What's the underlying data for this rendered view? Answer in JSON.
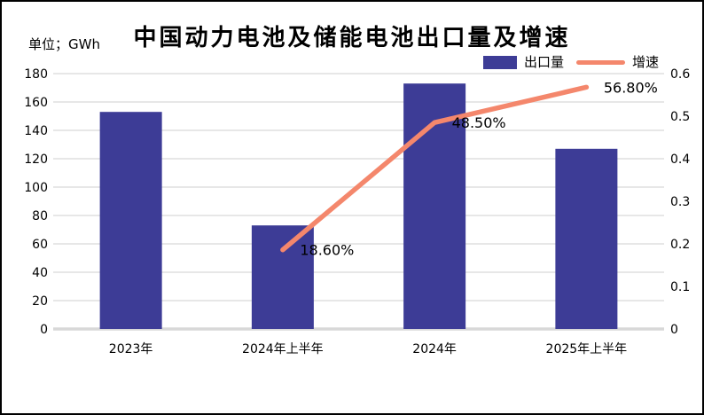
{
  "meta": {
    "title": "中国动力电池及储能电池出口量及增速",
    "unit_label": "单位；GWh"
  },
  "chart_data": {
    "type": "bar+line",
    "title": "中国动力电池及储能电池出口量及增速",
    "unit": "GWh",
    "categories": [
      "2023年",
      "2024年上半年",
      "2024年",
      "2025年上半年"
    ],
    "series": [
      {
        "name": "出口量",
        "type": "bar",
        "axis": "left",
        "color": "#3D3C96",
        "values": [
          153,
          73,
          173,
          127
        ]
      },
      {
        "name": "增速",
        "type": "line",
        "axis": "right",
        "color": "#F4876C",
        "values": [
          null,
          0.186,
          0.485,
          0.568
        ],
        "point_labels": [
          null,
          "18.60%",
          "48.50%",
          "56.80%"
        ]
      }
    ],
    "left_axis": {
      "min": 0,
      "max": 180,
      "ticks": [
        "180",
        "160",
        "140",
        "120",
        "100",
        "80",
        "60",
        "40",
        "20",
        "0"
      ]
    },
    "right_axis": {
      "min": 0,
      "max": 0.6,
      "ticks": [
        "0.6",
        "0.5",
        "0.4",
        "0.3",
        "0.2",
        "0.1",
        "0"
      ]
    },
    "grid": true,
    "legend_position": "top-right",
    "gridline_color": "#E7E7E7",
    "zero_line_color": "#D8D8D8",
    "label_color": "#000000"
  }
}
